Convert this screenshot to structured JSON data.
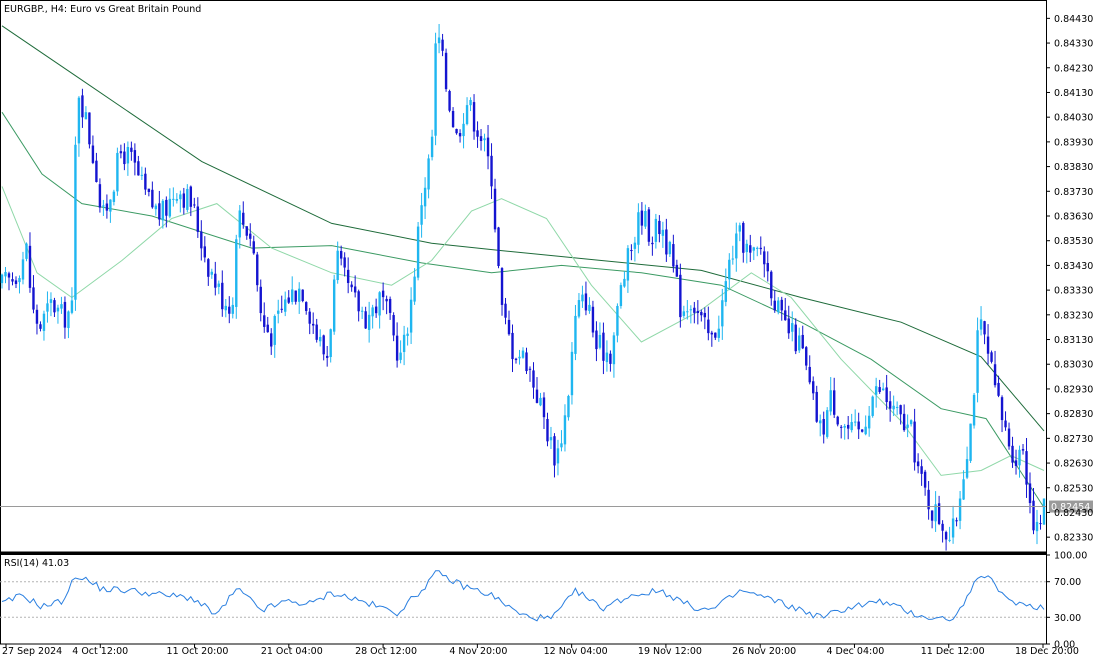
{
  "header": {
    "symbol_title": "EURGBP., H4:  Euro vs Great Britain Pound"
  },
  "indicator": {
    "rsi_label": "RSI(14) 41.03",
    "levels": [
      "100.00",
      "70.00",
      "30.00",
      "0.00"
    ]
  },
  "price_axis": {
    "ticks": [
      "0.84430",
      "0.84330",
      "0.84230",
      "0.84130",
      "0.84030",
      "0.83930",
      "0.83830",
      "0.83730",
      "0.83630",
      "0.83530",
      "0.83430",
      "0.83330",
      "0.83230",
      "0.83130",
      "0.83030",
      "0.82930",
      "0.82830",
      "0.82730",
      "0.82630",
      "0.82530",
      "0.82430",
      "0.82330"
    ],
    "current_price": "0.82454"
  },
  "time_axis": {
    "labels": [
      "27 Sep 2024",
      "4 Oct 12:00",
      "11 Oct 20:00",
      "21 Oct 04:00",
      "28 Oct 12:00",
      "4 Nov 20:00",
      "12 Nov 04:00",
      "19 Nov 12:00",
      "26 Nov 20:00",
      "4 Dec 04:00",
      "11 Dec 12:00",
      "18 Dec 20:00"
    ]
  },
  "colors": {
    "bull": "#1fb6f0",
    "bear": "#1414d0",
    "ma_fast": "#8fd8a8",
    "ma_mid": "#3b9a63",
    "ma_slow": "#1e6b3a",
    "rsi": "#2a7fe0",
    "grid_level": "#b4b4b4",
    "price_line": "#9a9a9a",
    "price_tag_bg": "#9a9a9a"
  },
  "chart_data": {
    "type": "candlestick",
    "symbol": "EURGBP.",
    "timeframe": "H4",
    "title": "EURGBP., H4:  Euro vs Great Britain Pound",
    "ylim": [
      0.8227,
      0.8448
    ],
    "x_range": [
      "27 Sep 2024",
      "18 Dec 20:00"
    ],
    "close_path": [
      {
        "x": 0,
        "y": 0.8335
      },
      {
        "x": 12,
        "y": 0.8338
      },
      {
        "x": 25,
        "y": 0.835
      },
      {
        "x": 30,
        "y": 0.8325
      },
      {
        "x": 38,
        "y": 0.8318
      },
      {
        "x": 50,
        "y": 0.8328
      },
      {
        "x": 60,
        "y": 0.8322
      },
      {
        "x": 70,
        "y": 0.8325
      },
      {
        "x": 75,
        "y": 0.8418
      },
      {
        "x": 85,
        "y": 0.84
      },
      {
        "x": 95,
        "y": 0.838
      },
      {
        "x": 100,
        "y": 0.836
      },
      {
        "x": 110,
        "y": 0.8375
      },
      {
        "x": 120,
        "y": 0.839
      },
      {
        "x": 130,
        "y": 0.8385
      },
      {
        "x": 145,
        "y": 0.837
      },
      {
        "x": 160,
        "y": 0.8363
      },
      {
        "x": 175,
        "y": 0.8375
      },
      {
        "x": 190,
        "y": 0.8368
      },
      {
        "x": 205,
        "y": 0.8345
      },
      {
        "x": 220,
        "y": 0.833
      },
      {
        "x": 232,
        "y": 0.8327
      },
      {
        "x": 235,
        "y": 0.8365
      },
      {
        "x": 250,
        "y": 0.8355
      },
      {
        "x": 260,
        "y": 0.832
      },
      {
        "x": 270,
        "y": 0.8315
      },
      {
        "x": 285,
        "y": 0.833
      },
      {
        "x": 300,
        "y": 0.8335
      },
      {
        "x": 315,
        "y": 0.8315
      },
      {
        "x": 325,
        "y": 0.8305
      },
      {
        "x": 335,
        "y": 0.8345
      },
      {
        "x": 350,
        "y": 0.833
      },
      {
        "x": 365,
        "y": 0.8322
      },
      {
        "x": 380,
        "y": 0.833
      },
      {
        "x": 395,
        "y": 0.831
      },
      {
        "x": 400,
        "y": 0.8305
      },
      {
        "x": 410,
        "y": 0.833
      },
      {
        "x": 420,
        "y": 0.837
      },
      {
        "x": 430,
        "y": 0.839
      },
      {
        "x": 435,
        "y": 0.844
      },
      {
        "x": 445,
        "y": 0.8415
      },
      {
        "x": 455,
        "y": 0.8395
      },
      {
        "x": 465,
        "y": 0.841
      },
      {
        "x": 480,
        "y": 0.8395
      },
      {
        "x": 490,
        "y": 0.838
      },
      {
        "x": 500,
        "y": 0.8325
      },
      {
        "x": 510,
        "y": 0.831
      },
      {
        "x": 525,
        "y": 0.8305
      },
      {
        "x": 540,
        "y": 0.8285
      },
      {
        "x": 550,
        "y": 0.827
      },
      {
        "x": 555,
        "y": 0.8265
      },
      {
        "x": 565,
        "y": 0.8285
      },
      {
        "x": 575,
        "y": 0.8325
      },
      {
        "x": 585,
        "y": 0.833
      },
      {
        "x": 595,
        "y": 0.831
      },
      {
        "x": 610,
        "y": 0.8308
      },
      {
        "x": 620,
        "y": 0.8335
      },
      {
        "x": 630,
        "y": 0.835
      },
      {
        "x": 640,
        "y": 0.8365
      },
      {
        "x": 650,
        "y": 0.8355
      },
      {
        "x": 660,
        "y": 0.836
      },
      {
        "x": 670,
        "y": 0.8345
      },
      {
        "x": 680,
        "y": 0.8325
      },
      {
        "x": 690,
        "y": 0.833
      },
      {
        "x": 700,
        "y": 0.832
      },
      {
        "x": 710,
        "y": 0.8312
      },
      {
        "x": 720,
        "y": 0.8325
      },
      {
        "x": 730,
        "y": 0.8348
      },
      {
        "x": 740,
        "y": 0.8355
      },
      {
        "x": 750,
        "y": 0.8345
      },
      {
        "x": 760,
        "y": 0.835
      },
      {
        "x": 770,
        "y": 0.8335
      },
      {
        "x": 780,
        "y": 0.832
      },
      {
        "x": 790,
        "y": 0.8315
      },
      {
        "x": 800,
        "y": 0.831
      },
      {
        "x": 810,
        "y": 0.829
      },
      {
        "x": 820,
        "y": 0.8275
      },
      {
        "x": 830,
        "y": 0.829
      },
      {
        "x": 840,
        "y": 0.828
      },
      {
        "x": 850,
        "y": 0.8275
      },
      {
        "x": 860,
        "y": 0.8275
      },
      {
        "x": 870,
        "y": 0.829
      },
      {
        "x": 880,
        "y": 0.8293
      },
      {
        "x": 890,
        "y": 0.8285
      },
      {
        "x": 900,
        "y": 0.828
      },
      {
        "x": 910,
        "y": 0.8275
      },
      {
        "x": 920,
        "y": 0.8255
      },
      {
        "x": 930,
        "y": 0.8245
      },
      {
        "x": 940,
        "y": 0.824
      },
      {
        "x": 950,
        "y": 0.8232
      },
      {
        "x": 955,
        "y": 0.824
      },
      {
        "x": 962,
        "y": 0.826
      },
      {
        "x": 970,
        "y": 0.828
      },
      {
        "x": 978,
        "y": 0.832
      },
      {
        "x": 985,
        "y": 0.831
      },
      {
        "x": 995,
        "y": 0.829
      },
      {
        "x": 1005,
        "y": 0.8275
      },
      {
        "x": 1015,
        "y": 0.8265
      },
      {
        "x": 1022,
        "y": 0.827
      },
      {
        "x": 1030,
        "y": 0.8245
      },
      {
        "x": 1036,
        "y": 0.8235
      },
      {
        "x": 1043,
        "y": 0.8245
      }
    ],
    "moving_averages": [
      {
        "color_key": "ma_slow",
        "points": [
          {
            "x": 0,
            "y": 0.844
          },
          {
            "x": 80,
            "y": 0.8418
          },
          {
            "x": 200,
            "y": 0.8385
          },
          {
            "x": 330,
            "y": 0.836
          },
          {
            "x": 430,
            "y": 0.8352
          },
          {
            "x": 500,
            "y": 0.8349
          },
          {
            "x": 600,
            "y": 0.8345
          },
          {
            "x": 700,
            "y": 0.8341
          },
          {
            "x": 800,
            "y": 0.833
          },
          {
            "x": 900,
            "y": 0.832
          },
          {
            "x": 980,
            "y": 0.8306
          },
          {
            "x": 1043,
            "y": 0.8276
          }
        ]
      },
      {
        "color_key": "ma_mid",
        "points": [
          {
            "x": 0,
            "y": 0.8405
          },
          {
            "x": 40,
            "y": 0.838
          },
          {
            "x": 80,
            "y": 0.8368
          },
          {
            "x": 150,
            "y": 0.8363
          },
          {
            "x": 250,
            "y": 0.835
          },
          {
            "x": 330,
            "y": 0.8351
          },
          {
            "x": 420,
            "y": 0.8344
          },
          {
            "x": 490,
            "y": 0.834
          },
          {
            "x": 560,
            "y": 0.8343
          },
          {
            "x": 640,
            "y": 0.834
          },
          {
            "x": 720,
            "y": 0.8335
          },
          {
            "x": 800,
            "y": 0.832
          },
          {
            "x": 870,
            "y": 0.8305
          },
          {
            "x": 940,
            "y": 0.8285
          },
          {
            "x": 985,
            "y": 0.8281
          },
          {
            "x": 1043,
            "y": 0.8245
          }
        ]
      },
      {
        "color_key": "ma_fast",
        "points": [
          {
            "x": 0,
            "y": 0.8375
          },
          {
            "x": 35,
            "y": 0.834
          },
          {
            "x": 70,
            "y": 0.833
          },
          {
            "x": 120,
            "y": 0.8345
          },
          {
            "x": 170,
            "y": 0.8362
          },
          {
            "x": 215,
            "y": 0.8368
          },
          {
            "x": 270,
            "y": 0.835
          },
          {
            "x": 330,
            "y": 0.834
          },
          {
            "x": 390,
            "y": 0.8335
          },
          {
            "x": 430,
            "y": 0.8345
          },
          {
            "x": 470,
            "y": 0.8365
          },
          {
            "x": 500,
            "y": 0.837
          },
          {
            "x": 545,
            "y": 0.8362
          },
          {
            "x": 590,
            "y": 0.8335
          },
          {
            "x": 640,
            "y": 0.8312
          },
          {
            "x": 700,
            "y": 0.8325
          },
          {
            "x": 750,
            "y": 0.834
          },
          {
            "x": 790,
            "y": 0.833
          },
          {
            "x": 840,
            "y": 0.8305
          },
          {
            "x": 900,
            "y": 0.828
          },
          {
            "x": 940,
            "y": 0.8258
          },
          {
            "x": 980,
            "y": 0.826
          },
          {
            "x": 1010,
            "y": 0.8266
          },
          {
            "x": 1043,
            "y": 0.826
          }
        ]
      }
    ],
    "rsi": {
      "period": 14,
      "last": 41.03,
      "ylim": [
        0,
        100
      ],
      "levels": [
        30,
        70
      ],
      "points": [
        {
          "x": 0,
          "y": 45
        },
        {
          "x": 20,
          "y": 55
        },
        {
          "x": 40,
          "y": 42
        },
        {
          "x": 60,
          "y": 48
        },
        {
          "x": 75,
          "y": 78
        },
        {
          "x": 100,
          "y": 62
        },
        {
          "x": 130,
          "y": 60
        },
        {
          "x": 160,
          "y": 55
        },
        {
          "x": 190,
          "y": 52
        },
        {
          "x": 215,
          "y": 32
        },
        {
          "x": 235,
          "y": 62
        },
        {
          "x": 260,
          "y": 38
        },
        {
          "x": 285,
          "y": 48
        },
        {
          "x": 310,
          "y": 45
        },
        {
          "x": 330,
          "y": 58
        },
        {
          "x": 360,
          "y": 48
        },
        {
          "x": 395,
          "y": 35
        },
        {
          "x": 415,
          "y": 55
        },
        {
          "x": 435,
          "y": 80
        },
        {
          "x": 460,
          "y": 66
        },
        {
          "x": 490,
          "y": 55
        },
        {
          "x": 520,
          "y": 32
        },
        {
          "x": 550,
          "y": 28
        },
        {
          "x": 575,
          "y": 60
        },
        {
          "x": 600,
          "y": 40
        },
        {
          "x": 630,
          "y": 55
        },
        {
          "x": 660,
          "y": 60
        },
        {
          "x": 690,
          "y": 42
        },
        {
          "x": 710,
          "y": 38
        },
        {
          "x": 740,
          "y": 60
        },
        {
          "x": 770,
          "y": 50
        },
        {
          "x": 800,
          "y": 38
        },
        {
          "x": 820,
          "y": 30
        },
        {
          "x": 850,
          "y": 42
        },
        {
          "x": 880,
          "y": 48
        },
        {
          "x": 910,
          "y": 35
        },
        {
          "x": 935,
          "y": 28
        },
        {
          "x": 955,
          "y": 30
        },
        {
          "x": 970,
          "y": 62
        },
        {
          "x": 985,
          "y": 80
        },
        {
          "x": 1000,
          "y": 55
        },
        {
          "x": 1020,
          "y": 45
        },
        {
          "x": 1043,
          "y": 41
        }
      ]
    }
  }
}
